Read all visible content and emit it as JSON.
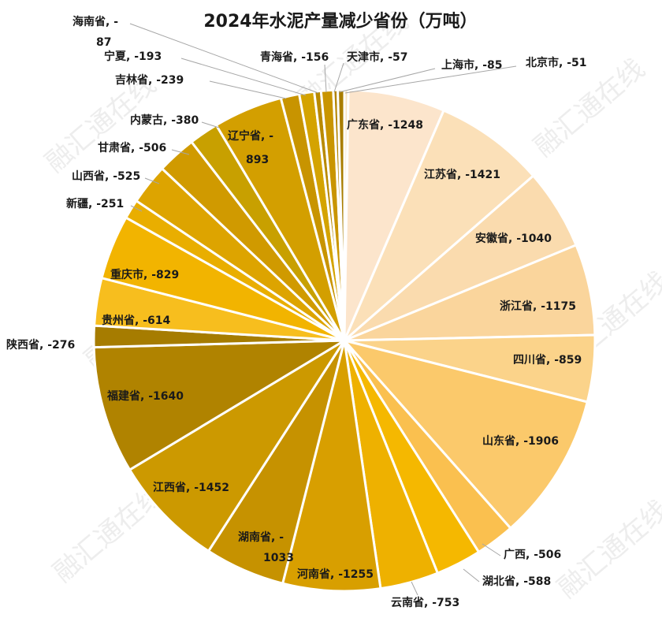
{
  "chart_data": {
    "type": "pie",
    "title": "2024年水泥产量减少省份（万吨）",
    "unit": "万吨",
    "watermark": "融汇通在线",
    "slices": [
      {
        "name": "北京市",
        "value": -51,
        "label": "北京市, -51",
        "color": "#F8E3C0"
      },
      {
        "name": "广东省",
        "value": -1248,
        "label": "广东省, -1248",
        "color": "#FCE5CC"
      },
      {
        "name": "江苏省",
        "value": -1421,
        "label": "江苏省, -1421",
        "color": "#FBE0B8"
      },
      {
        "name": "安徽省",
        "value": -1040,
        "label": "安徽省, -1040",
        "color": "#FADBAE"
      },
      {
        "name": "浙江省",
        "value": -1175,
        "label": "浙江省, -1175",
        "color": "#FAD59C"
      },
      {
        "name": "四川省",
        "value": -859,
        "label": "四川省, -859",
        "color": "#FBD38A"
      },
      {
        "name": "山东省",
        "value": -1906,
        "label": "山东省, -1906",
        "color": "#FBC96B"
      },
      {
        "name": "广西",
        "value": -506,
        "label": "广西, -506",
        "color": "#FAC04F"
      },
      {
        "name": "湖北省",
        "value": -588,
        "label": "湖北省, -588",
        "color": "#F5B800"
      },
      {
        "name": "云南省",
        "value": -753,
        "label": "云南省, -753",
        "color": "#EEB100"
      },
      {
        "name": "河南省",
        "value": -1255,
        "label": "河南省, -1255",
        "color": "#D89F00"
      },
      {
        "name": "湖南省",
        "value": -1033,
        "label": "湖南省, -1033",
        "color": "#C69200"
      },
      {
        "name": "江西省",
        "value": -1452,
        "label": "江西省, -1452",
        "color": "#CC9900"
      },
      {
        "name": "福建省",
        "value": -1640,
        "label": "福建省, -1640",
        "color": "#B08300"
      },
      {
        "name": "陕西省",
        "value": -276,
        "label": "陕西省, -276",
        "color": "#A67C00"
      },
      {
        "name": "贵州省",
        "value": -614,
        "label": "贵州省, -614",
        "color": "#F7BE1E"
      },
      {
        "name": "重庆市",
        "value": -829,
        "label": "重庆市, -829",
        "color": "#F2B400"
      },
      {
        "name": "新疆",
        "value": -251,
        "label": "新疆, -251",
        "color": "#E9AE00"
      },
      {
        "name": "山西省",
        "value": -525,
        "label": "山西省, -525",
        "color": "#DDA400"
      },
      {
        "name": "甘肃省",
        "value": -506,
        "label": "甘肃省, -506",
        "color": "#D09A00"
      },
      {
        "name": "内蒙古",
        "value": -380,
        "label": "内蒙古, -380",
        "color": "#C8A000"
      },
      {
        "name": "辽宁省",
        "value": -893,
        "label": "辽宁省, -893",
        "color": "#D39F00"
      },
      {
        "name": "吉林省",
        "value": -239,
        "label": "吉林省, -239",
        "color": "#C89400"
      },
      {
        "name": "宁夏",
        "value": -193,
        "label": "宁夏, -193",
        "color": "#D4A300"
      },
      {
        "name": "海南省",
        "value": -87,
        "label": "海南省, -87",
        "color": "#B98A00"
      },
      {
        "name": "青海省",
        "value": -156,
        "label": "青海省, -156",
        "color": "#C99500"
      },
      {
        "name": "天津市",
        "value": -57,
        "label": "天津市, -57",
        "color": "#B38400"
      },
      {
        "name": "上海市",
        "value": -85,
        "label": "上海市, -85",
        "color": "#A87D00"
      }
    ]
  }
}
